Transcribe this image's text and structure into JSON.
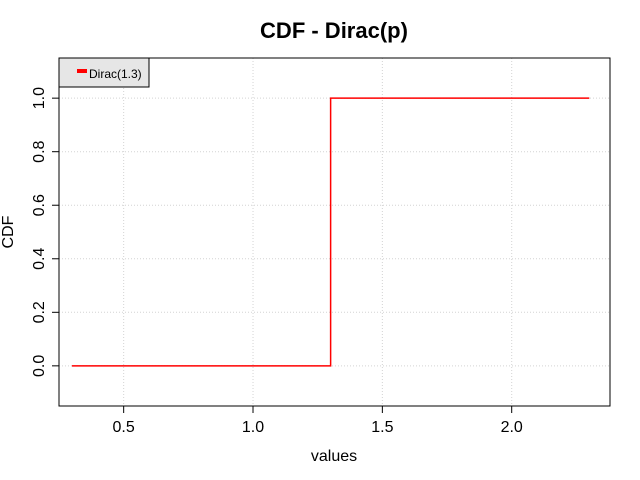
{
  "chart_data": {
    "type": "line",
    "title": "CDF - Dirac(p)",
    "xlabel": "values",
    "ylabel": "CDF",
    "xlim": [
      0.25,
      2.38
    ],
    "ylim": [
      -0.15,
      1.15
    ],
    "x_ticks": [
      0.5,
      1.0,
      1.5,
      2.0
    ],
    "x_tick_labels": [
      "0.5",
      "1.0",
      "1.5",
      "2.0"
    ],
    "y_ticks": [
      0.0,
      0.2,
      0.4,
      0.6,
      0.8,
      1.0
    ],
    "y_tick_labels": [
      "0.0",
      "0.2",
      "0.4",
      "0.6",
      "0.8",
      "1.0"
    ],
    "grid": true,
    "legend_position": "top-left",
    "series": [
      {
        "name": "Dirac(1.3)",
        "color": "#ff0000",
        "step": true,
        "x": [
          0.3,
          1.3,
          1.3,
          2.3
        ],
        "y": [
          0.0,
          0.0,
          1.0,
          1.0
        ]
      }
    ]
  }
}
